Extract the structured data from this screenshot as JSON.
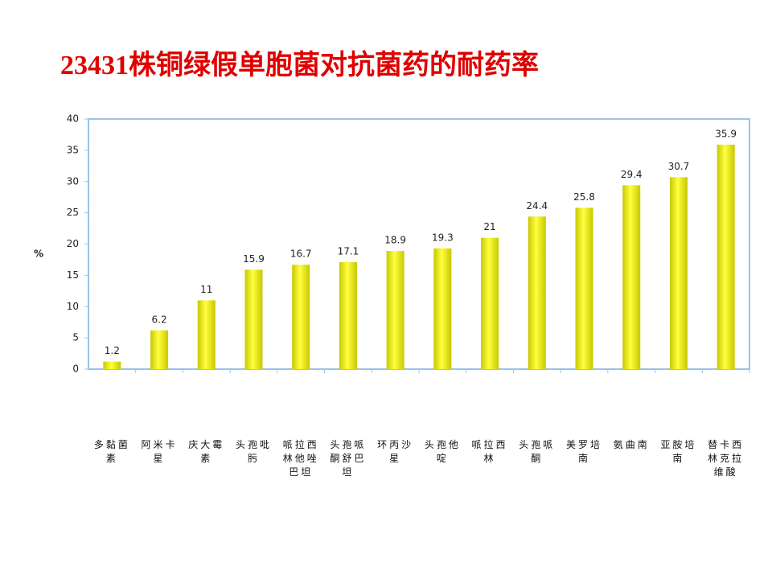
{
  "chart_data": {
    "type": "bar",
    "title": "23431株铜绿假单胞菌对抗菌药的耐药率",
    "ylabel": "%",
    "categories": [
      "多黏菌素",
      "阿米卡星",
      "庆大霉素",
      "头孢吡肟",
      "哌拉西林他唑巴坦",
      "头孢哌酮舒巴坦",
      "环丙沙星",
      "头孢他啶",
      "哌拉西林",
      "头孢哌酮",
      "美罗培南",
      "氨曲南",
      "亚胺培南",
      "替卡西林克拉维酸"
    ],
    "values": [
      1.2,
      6.2,
      11,
      15.9,
      16.7,
      17.1,
      18.9,
      19.3,
      21,
      24.4,
      25.8,
      29.4,
      30.7,
      35.9
    ],
    "color": "#c8c800",
    "ylim": [
      0,
      40
    ],
    "yticks": [
      0,
      5,
      10,
      15,
      20,
      25,
      30,
      35,
      40
    ],
    "grid": false
  }
}
